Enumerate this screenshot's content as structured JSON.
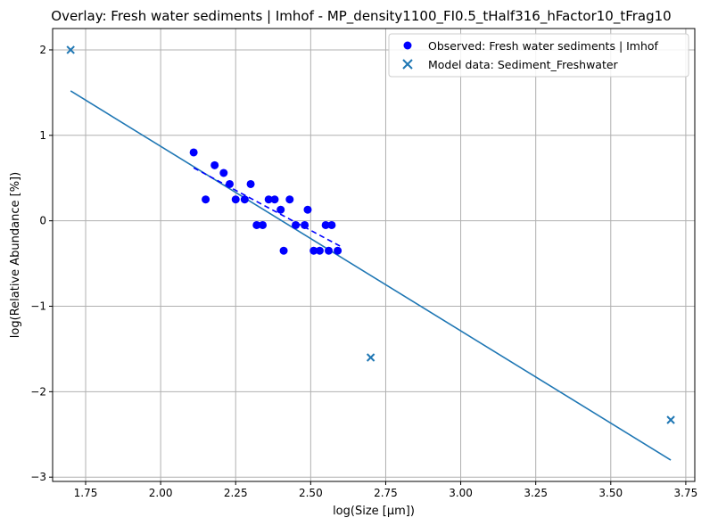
{
  "chart_data": {
    "type": "scatter",
    "title": "Overlay: Fresh water sediments | Imhof - MP_density1100_FI0.5_tHalf316_hFactor10_tFrag10",
    "xlabel": "log(Size [µm])",
    "ylabel": "log(Relative Abundance [%])",
    "xlim": [
      1.64,
      3.78
    ],
    "ylim": [
      -3.05,
      2.25
    ],
    "xticks": [
      1.75,
      2.0,
      2.25,
      2.5,
      2.75,
      3.0,
      3.25,
      3.5,
      3.75
    ],
    "xtick_labels": [
      "1.75",
      "2.00",
      "2.25",
      "2.50",
      "2.75",
      "3.00",
      "3.25",
      "3.50",
      "3.75"
    ],
    "yticks": [
      2,
      1,
      0,
      -1,
      -2,
      -3
    ],
    "ytick_labels": [
      "2",
      "1",
      "0",
      "−1",
      "−2",
      "−3"
    ],
    "grid": true,
    "legend_position": "top-right",
    "series": [
      {
        "name": "Observed: Fresh water sediments | Imhof",
        "marker": "circle",
        "color": "#0000ff",
        "points": [
          [
            2.11,
            0.8
          ],
          [
            2.15,
            0.25
          ],
          [
            2.18,
            0.65
          ],
          [
            2.21,
            0.56
          ],
          [
            2.23,
            0.43
          ],
          [
            2.25,
            0.25
          ],
          [
            2.28,
            0.25
          ],
          [
            2.3,
            0.43
          ],
          [
            2.32,
            -0.05
          ],
          [
            2.34,
            -0.05
          ],
          [
            2.36,
            0.25
          ],
          [
            2.38,
            0.25
          ],
          [
            2.4,
            0.13
          ],
          [
            2.41,
            -0.35
          ],
          [
            2.43,
            0.25
          ],
          [
            2.45,
            -0.05
          ],
          [
            2.48,
            -0.05
          ],
          [
            2.49,
            0.13
          ],
          [
            2.51,
            -0.35
          ],
          [
            2.53,
            -0.35
          ],
          [
            2.55,
            -0.05
          ],
          [
            2.56,
            -0.35
          ],
          [
            2.57,
            -0.05
          ],
          [
            2.59,
            -0.35
          ]
        ]
      },
      {
        "name": "Model data: Sediment_Freshwater",
        "marker": "x",
        "color": "#1f77b4",
        "points": [
          [
            1.7,
            2.0
          ],
          [
            2.7,
            -1.6
          ],
          [
            3.7,
            -2.33
          ]
        ]
      }
    ],
    "lines": [
      {
        "style": "solid",
        "color": "#1f77b4",
        "from": [
          1.7,
          1.52
        ],
        "to": [
          3.7,
          -2.8
        ]
      },
      {
        "style": "dashed",
        "color": "#0000ff",
        "from": [
          2.11,
          0.62
        ],
        "to": [
          2.6,
          -0.3
        ]
      }
    ]
  }
}
